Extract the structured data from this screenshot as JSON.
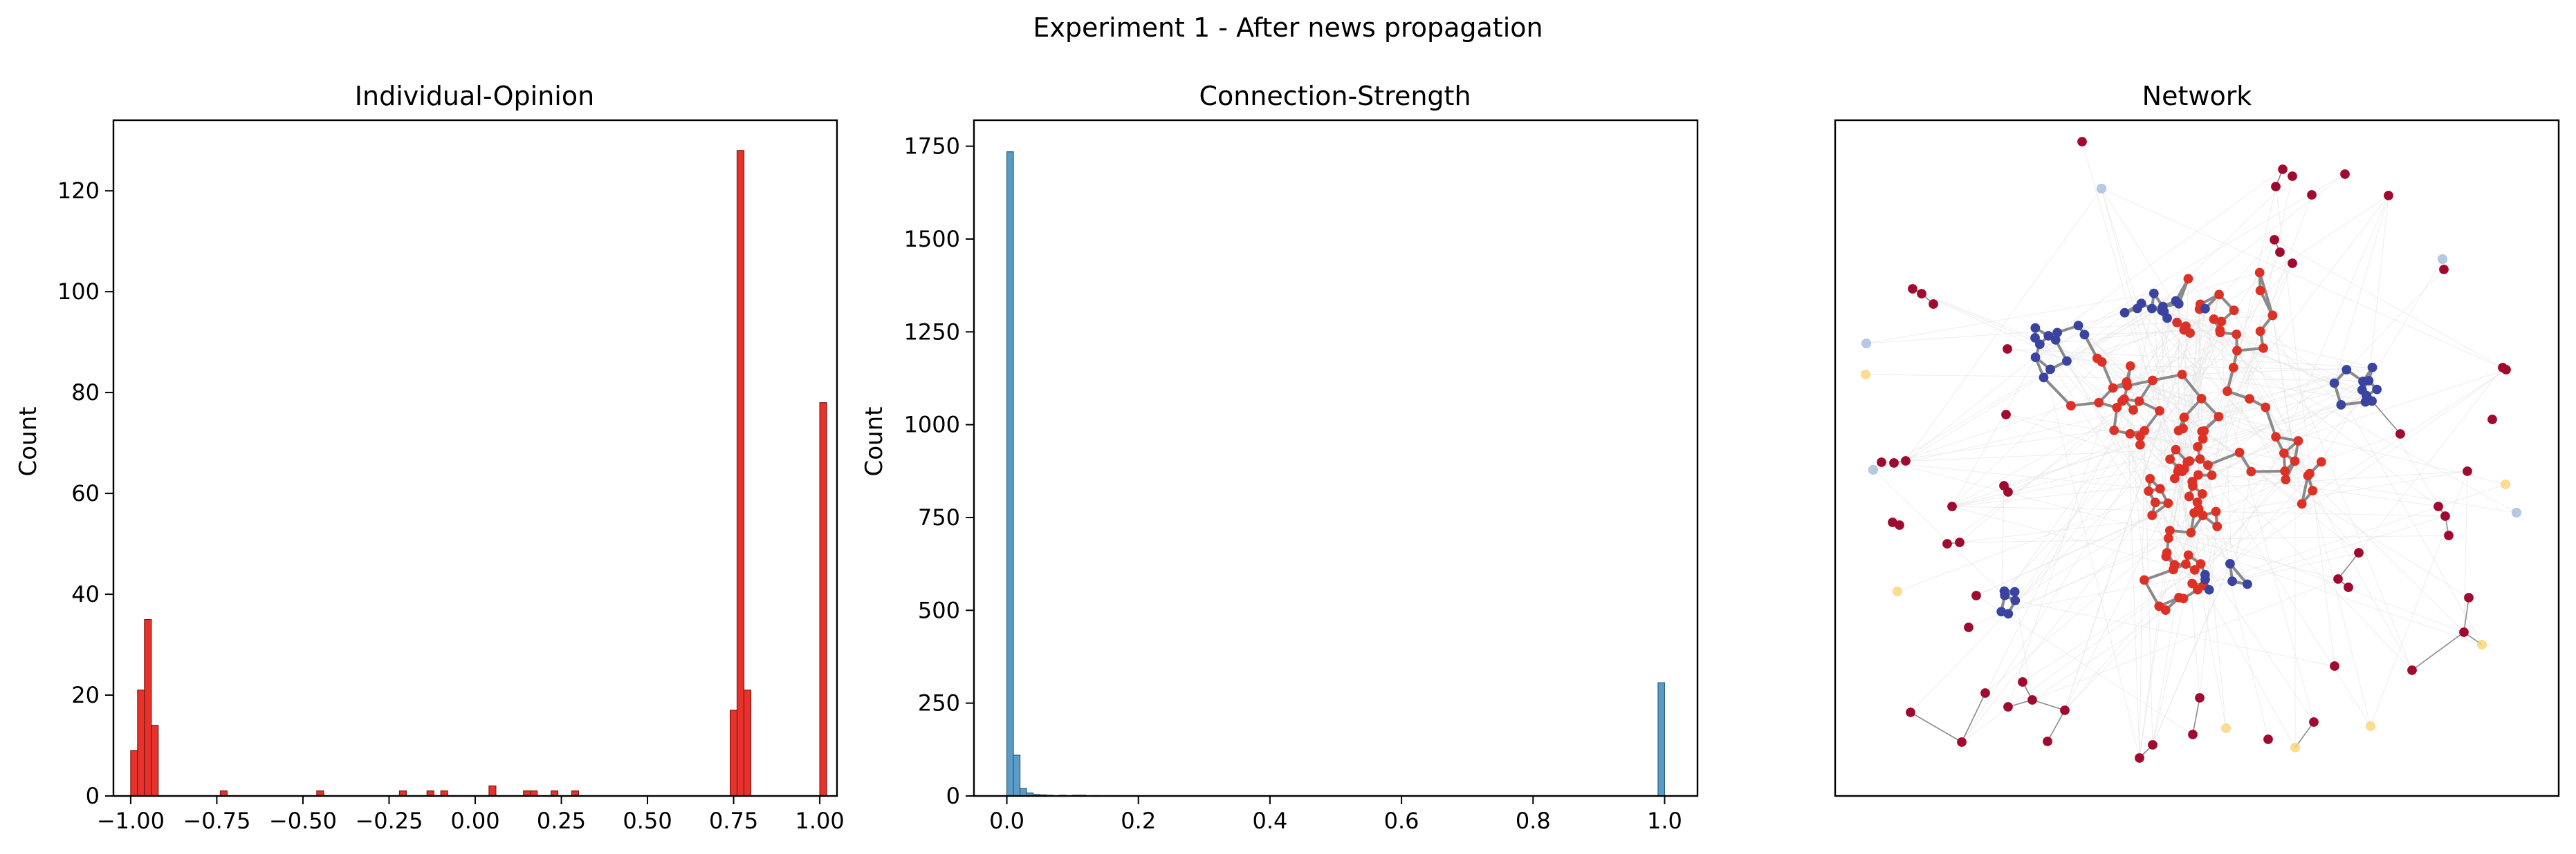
{
  "figure": {
    "suptitle": "Experiment 1 - After news propagation"
  },
  "chart_data": [
    {
      "type": "bar",
      "title": "Individual-Opinion",
      "xlabel": "",
      "ylabel": "Count",
      "xlim": [
        -1.05,
        1.05
      ],
      "ylim": [
        0,
        134
      ],
      "xticks": [
        -1.0,
        -0.75,
        -0.5,
        -0.25,
        0.0,
        0.25,
        0.5,
        0.75,
        1.0
      ],
      "xtick_labels": [
        "−1.00",
        "−0.75",
        "−0.50",
        "−0.25",
        "0.00",
        "0.25",
        "0.50",
        "0.75",
        "1.00"
      ],
      "yticks": [
        0,
        20,
        40,
        60,
        80,
        100,
        120
      ],
      "ytick_labels": [
        "0",
        "20",
        "40",
        "60",
        "80",
        "100",
        "120"
      ],
      "bin_width": 0.02,
      "bar_color": "#e8312a",
      "bar_edge": "#7a1a16",
      "bins": [
        {
          "x": -1.0,
          "count": 9
        },
        {
          "x": -0.98,
          "count": 21
        },
        {
          "x": -0.96,
          "count": 35
        },
        {
          "x": -0.94,
          "count": 14
        },
        {
          "x": -0.74,
          "count": 1
        },
        {
          "x": -0.46,
          "count": 1
        },
        {
          "x": -0.22,
          "count": 1
        },
        {
          "x": -0.14,
          "count": 1
        },
        {
          "x": -0.1,
          "count": 1
        },
        {
          "x": 0.04,
          "count": 2
        },
        {
          "x": 0.14,
          "count": 1
        },
        {
          "x": 0.16,
          "count": 1
        },
        {
          "x": 0.22,
          "count": 1
        },
        {
          "x": 0.28,
          "count": 1
        },
        {
          "x": 0.74,
          "count": 17
        },
        {
          "x": 0.76,
          "count": 128
        },
        {
          "x": 0.78,
          "count": 21
        },
        {
          "x": 1.0,
          "count": 78
        }
      ],
      "grid": false
    },
    {
      "type": "bar",
      "title": "Connection-Strength",
      "xlabel": "",
      "ylabel": "Count",
      "xlim": [
        -0.05,
        1.05
      ],
      "ylim": [
        0,
        1820
      ],
      "xticks": [
        0.0,
        0.2,
        0.4,
        0.6,
        0.8,
        1.0
      ],
      "xtick_labels": [
        "0.0",
        "0.2",
        "0.4",
        "0.6",
        "0.8",
        "1.0"
      ],
      "yticks": [
        0,
        250,
        500,
        750,
        1000,
        1250,
        1500,
        1750
      ],
      "ytick_labels": [
        "0",
        "250",
        "500",
        "750",
        "1000",
        "1250",
        "1500",
        "1750"
      ],
      "bin_width": 0.01,
      "bar_color": "#5b9cc6",
      "bar_edge": "#2d5c7c",
      "bins": [
        {
          "x": 0.0,
          "count": 1735
        },
        {
          "x": 0.01,
          "count": 110
        },
        {
          "x": 0.02,
          "count": 20
        },
        {
          "x": 0.03,
          "count": 8
        },
        {
          "x": 0.04,
          "count": 4
        },
        {
          "x": 0.05,
          "count": 3
        },
        {
          "x": 0.06,
          "count": 2
        },
        {
          "x": 0.08,
          "count": 2
        },
        {
          "x": 0.1,
          "count": 2
        },
        {
          "x": 0.11,
          "count": 2
        },
        {
          "x": 0.13,
          "count": 1
        },
        {
          "x": 0.15,
          "count": 1
        },
        {
          "x": 0.99,
          "count": 305
        }
      ],
      "grid": false
    },
    {
      "type": "scatter",
      "title": "Network",
      "colors": {
        "blue": "#3a44a0",
        "red": "#de3126",
        "maroon": "#a00a2e",
        "yellow": "#fbd26c",
        "lightblue": "#9db8db",
        "edge": "#8a8a8a",
        "faint_edge": "#e4e4e4"
      },
      "ticks": "none"
    }
  ]
}
